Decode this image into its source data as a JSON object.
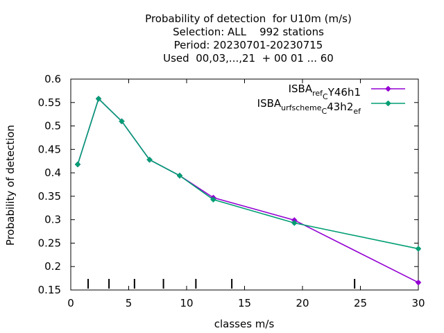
{
  "chart_data": {
    "type": "line",
    "title_lines": [
      "Probability of detection  for U10m (m/s)",
      "Selection: ALL    992 stations",
      "Period: 20230701-20230715",
      "Used  00,03,...,21  + 00 01 ... 60"
    ],
    "xlabel": "classes m/s",
    "ylabel": "Probability of detection",
    "xlim": [
      0,
      30
    ],
    "ylim": [
      0.15,
      0.6
    ],
    "x_ticks": [
      0,
      5,
      10,
      15,
      20,
      25,
      30
    ],
    "y_ticks": [
      0.15,
      0.2,
      0.25,
      0.3,
      0.35,
      0.4,
      0.45,
      0.5,
      0.55,
      0.6
    ],
    "x_tick_labels": [
      "0",
      "5",
      "10",
      "15",
      "20",
      "25",
      "30"
    ],
    "y_tick_labels": [
      "0.15",
      "0.2",
      "0.25",
      "0.3",
      "0.35",
      "0.4",
      "0.45",
      "0.5",
      "0.55",
      "0.6"
    ],
    "class_markers": [
      1.5,
      3.3,
      5.5,
      8.0,
      10.8,
      13.9,
      24.5
    ],
    "legend_position": "top-right",
    "series": [
      {
        "name": "ISBA_ref_CY46h1",
        "legend_parts": [
          [
            "ISBA",
            "n"
          ],
          [
            "ref",
            "s"
          ],
          [
            "C",
            "s"
          ],
          [
            "Y46h1",
            "n"
          ]
        ],
        "color": "#9400d3",
        "x": [
          0.6,
          2.4,
          4.4,
          6.8,
          9.4,
          12.3,
          19.3,
          30.0
        ],
        "y": [
          0.418,
          0.558,
          0.51,
          0.428,
          0.394,
          0.347,
          0.299,
          0.166
        ]
      },
      {
        "name": "ISBA_surfscheme_C43h2_ref",
        "legend_parts": [
          [
            "ISBA",
            "n"
          ],
          [
            "urfscheme",
            "s"
          ],
          [
            "C",
            "s"
          ],
          [
            "43h2",
            "n"
          ],
          [
            "ef",
            "s"
          ]
        ],
        "color": "#009e73",
        "x": [
          0.6,
          2.4,
          4.4,
          6.8,
          9.4,
          12.3,
          19.3,
          30.0
        ],
        "y": [
          0.418,
          0.558,
          0.51,
          0.428,
          0.394,
          0.343,
          0.293,
          0.238
        ]
      }
    ]
  }
}
